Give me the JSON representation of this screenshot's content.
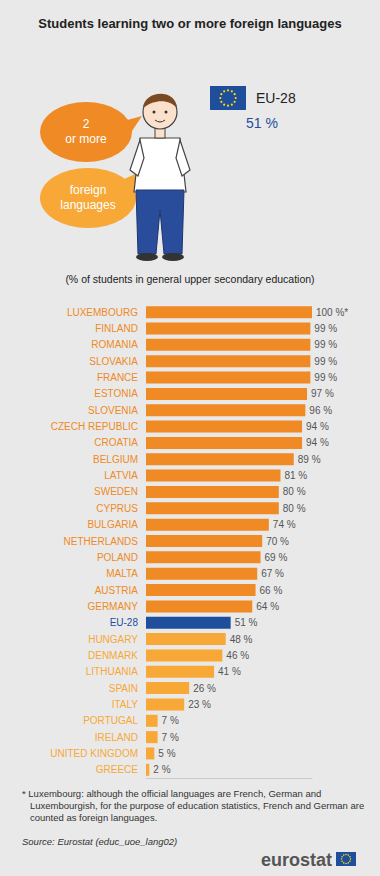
{
  "chart_data": {
    "type": "bar",
    "orientation": "horizontal",
    "title": "Students learning two or more foreign languages",
    "subtitle": "(% of students in general upper secondary education)",
    "categories": [
      "LUXEMBOURG",
      "FINLAND",
      "ROMANIA",
      "SLOVAKIA",
      "FRANCE",
      "ESTONIA",
      "SLOVENIA",
      "CZECH REPUBLIC",
      "CROATIA",
      "BELGIUM",
      "LATVIA",
      "SWEDEN",
      "CYPRUS",
      "BULGARIA",
      "NETHERLANDS",
      "POLAND",
      "MALTA",
      "AUSTRIA",
      "GERMANY",
      "EU-28",
      "HUNGARY",
      "DENMARK",
      "LITHUANIA",
      "SPAIN",
      "ITALY",
      "PORTUGAL",
      "IRELAND",
      "UNITED KINGDOM",
      "GREECE"
    ],
    "values": [
      100,
      99,
      99,
      99,
      99,
      97,
      96,
      94,
      94,
      89,
      81,
      80,
      80,
      74,
      70,
      69,
      67,
      66,
      64,
      51,
      48,
      46,
      41,
      26,
      23,
      7,
      7,
      5,
      2
    ],
    "value_labels": [
      "100 %*",
      "99 %",
      "99 %",
      "99 %",
      "99 %",
      "97 %",
      "96 %",
      "94 %",
      "94 %",
      "89 %",
      "81 %",
      "80 %",
      "80 %",
      "74 %",
      "70 %",
      "69 %",
      "67 %",
      "66 %",
      "64 %",
      "51 %",
      "48 %",
      "46 %",
      "41 %",
      "26 %",
      "23 %",
      "7 %",
      "7 %",
      "5 %",
      "2 %"
    ],
    "colors": [
      "#f08a24",
      "#f08a24",
      "#f08a24",
      "#f08a24",
      "#f08a24",
      "#f08a24",
      "#f08a24",
      "#f08a24",
      "#f08a24",
      "#f08a24",
      "#f08a24",
      "#f08a24",
      "#f08a24",
      "#f08a24",
      "#f08a24",
      "#f08a24",
      "#f08a24",
      "#f08a24",
      "#f08a24",
      "#1f4e9d",
      "#f7a836",
      "#f7a836",
      "#f7a836",
      "#f7a836",
      "#f7a836",
      "#f7a836",
      "#f7a836",
      "#f7a836",
      "#f7a836"
    ],
    "xlim": [
      0,
      100
    ],
    "grid": false,
    "data_labels": true,
    "tick_labels": "y"
  },
  "infographic": {
    "bubbles": [
      [
        "2",
        "or more"
      ],
      [
        "foreign",
        "languages"
      ]
    ],
    "highlight": {
      "label": "EU-28",
      "value_label": "51 %"
    },
    "footnote": "* Luxembourg: although the official languages are French, German and Luxembourgish, for the purpose of education statistics, French and German are counted as foreign languages.",
    "source": "Source: Eurostat (educ_uoe_lang02)",
    "logo": "eurostat"
  }
}
